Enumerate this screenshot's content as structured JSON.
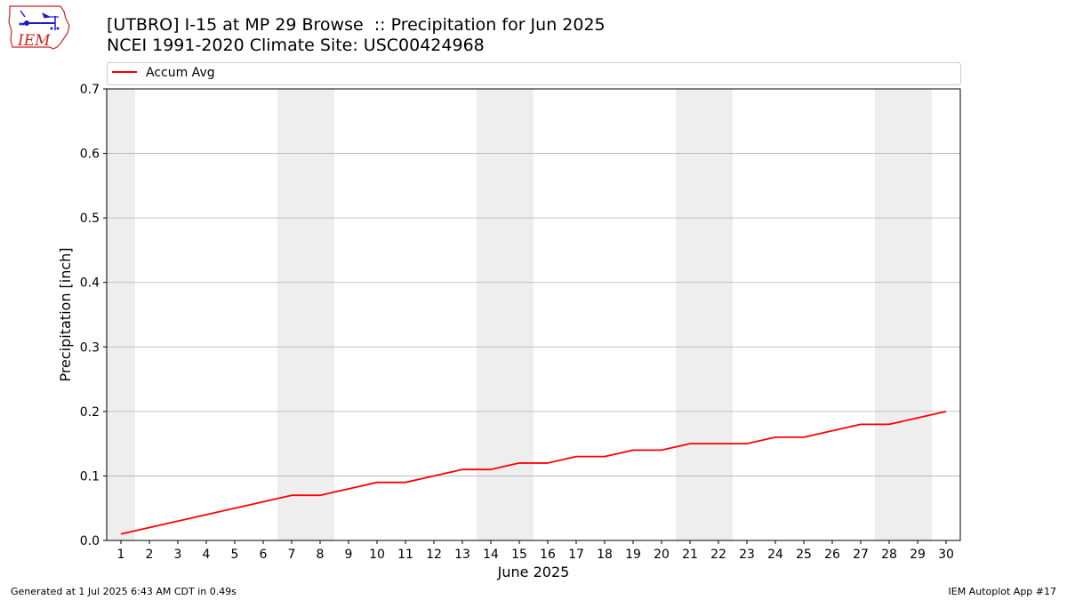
{
  "header": {
    "title_line1": "[UTBRO] I-15 at MP 29 Browse  :: Precipitation for Jun 2025",
    "title_line2": "NCEI 1991-2020 Climate Site: USC00424968"
  },
  "logo": {
    "text": "IEM",
    "icon": "iem-logo-icon"
  },
  "footer": {
    "left": "Generated at 1 Jul 2025 6:43 AM CDT in 0.49s",
    "right": "IEM Autoplot App #17"
  },
  "colors": {
    "line": "#ff0000",
    "weekend_band": "#eeeeee",
    "grid": "#b0b0b0",
    "logo_red": "#cc2222",
    "logo_blue": "#1a1acc"
  },
  "chart_data": {
    "type": "line",
    "xlabel": "June 2025",
    "ylabel": "Precipitation [inch]",
    "x": [
      1,
      2,
      3,
      4,
      5,
      6,
      7,
      8,
      9,
      10,
      11,
      12,
      13,
      14,
      15,
      16,
      17,
      18,
      19,
      20,
      21,
      22,
      23,
      24,
      25,
      26,
      27,
      28,
      29,
      30
    ],
    "series": [
      {
        "name": "Accum Avg",
        "color": "#ff0000",
        "values": [
          0.01,
          0.02,
          0.03,
          0.04,
          0.05,
          0.06,
          0.07,
          0.07,
          0.08,
          0.09,
          0.09,
          0.1,
          0.11,
          0.11,
          0.12,
          0.12,
          0.13,
          0.13,
          0.14,
          0.14,
          0.15,
          0.15,
          0.15,
          0.16,
          0.16,
          0.17,
          0.18,
          0.18,
          0.19,
          0.2
        ]
      }
    ],
    "xlim": [
      0.5,
      30.5
    ],
    "ylim": [
      0,
      0.7
    ],
    "yticks": [
      "0.0",
      "0.1",
      "0.2",
      "0.3",
      "0.4",
      "0.5",
      "0.6",
      "0.7"
    ],
    "xticks": [
      "1",
      "2",
      "3",
      "4",
      "5",
      "6",
      "7",
      "8",
      "9",
      "10",
      "11",
      "12",
      "13",
      "14",
      "15",
      "16",
      "17",
      "18",
      "19",
      "20",
      "21",
      "22",
      "23",
      "24",
      "25",
      "26",
      "27",
      "28",
      "29",
      "30"
    ],
    "weekend_days": [
      1,
      7,
      8,
      14,
      15,
      21,
      22,
      28,
      29
    ],
    "grid": "horizontal",
    "legend": "top-left"
  }
}
